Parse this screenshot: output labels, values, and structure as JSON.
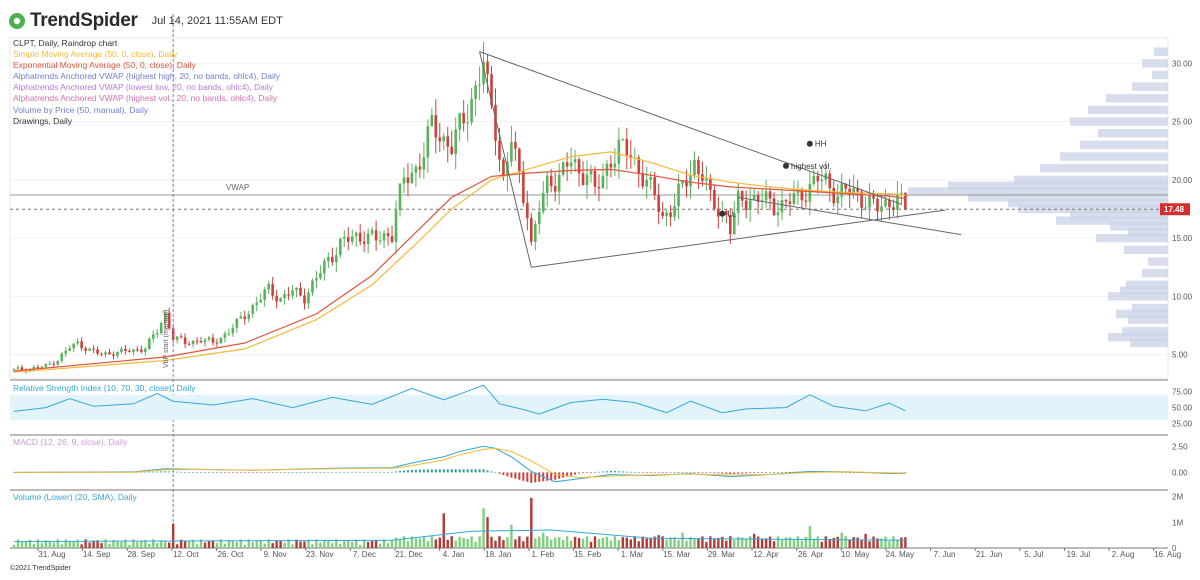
{
  "header": {
    "brand": "TrendSpider",
    "timestamp": "Jul 14, 2021 11:55AM EDT"
  },
  "legend": [
    {
      "text": "CLPT, Daily, Raindrop chart",
      "color": "#333333"
    },
    {
      "text": "Simple Moving Average (50, 0, close), Daily",
      "color": "#f5b935"
    },
    {
      "text": "Exponential Moving Average (50, 0, close), Daily",
      "color": "#e0533d"
    },
    {
      "text": "Alphatrends Anchored VWAP (highest high, 20, no bands, ohlc4), Daily",
      "color": "#6f7fd0"
    },
    {
      "text": "Alphatrends Anchored VWAP (lowest low, 20, no bands, ohlc4), Daily",
      "color": "#b57bd6"
    },
    {
      "text": "Alphatrends Anchored VWAP (highest vol., 20, no bands, ohlc4), Daily",
      "color": "#d66fb0"
    },
    {
      "text": "Volume by Price (50, manual), Daily",
      "color": "#6f7fd0"
    },
    {
      "text": "Drawings, Daily",
      "color": "#333333"
    }
  ],
  "annotations": {
    "vwap": "VWAP",
    "hh": "HH",
    "highest_vol": "highest vol.",
    "ll": "LL",
    "vbp_start": "VbP start (manual)",
    "price_tag": "17.48"
  },
  "panels": {
    "rsi": "Relative Strength Index (10, 70, 30, close), Daily",
    "macd": "MACD (12, 26, 9, close), Daily",
    "volume": "Volume (Lower) (20, SMA), Daily"
  },
  "colors": {
    "up": "#58b35a",
    "down": "#d0403a",
    "sma": "#f5b935",
    "ema": "#e0533d",
    "vbp": "#c9d2e6",
    "price_tag": "#d32f2f",
    "rsi": "#35a7d6"
  },
  "footer": "©2021 TrendSpider",
  "chart_data": {
    "type": "line",
    "price_axis": {
      "ticks": [
        "30.00",
        "25.00",
        "20.00",
        "15.00",
        "10.00",
        "5.00"
      ],
      "range": [
        3,
        32
      ]
    },
    "rsi_axis": {
      "ticks": [
        "75.00",
        "50.00",
        "25.00"
      ],
      "range": [
        15,
        90
      ],
      "band": [
        30,
        70
      ]
    },
    "macd_axis": {
      "ticks": [
        "2.50",
        "0.00"
      ],
      "range": [
        -1.3,
        3.2
      ]
    },
    "volume_axis": {
      "ticks": [
        "2M",
        "1M",
        "0"
      ],
      "range": [
        0,
        2100000
      ]
    },
    "x_ticks": [
      "31. Aug",
      "14. Sep",
      "28. Sep",
      "12. Oct",
      "26. Oct",
      "9. Nov",
      "23. Nov",
      "7. Dec",
      "21. Dec",
      "4. Jan",
      "18. Jan",
      "1. Feb",
      "15. Feb",
      "1. Mar",
      "15. Mar",
      "29. Mar",
      "12. Apr",
      "26. Apr",
      "10. May",
      "24. May",
      "7. Jun",
      "21. Jun",
      "5. Jul",
      "19. Jul",
      "2. Aug",
      "16. Aug"
    ],
    "close_path": [
      [
        0,
        3.7
      ],
      [
        4,
        3.8
      ],
      [
        8,
        4.0
      ],
      [
        11,
        4.6
      ],
      [
        14,
        5.6
      ],
      [
        16,
        6.0
      ],
      [
        19,
        5.4
      ],
      [
        22,
        5.0
      ],
      [
        25,
        5.2
      ],
      [
        29,
        5.3
      ],
      [
        33,
        5.6
      ],
      [
        36,
        7.0
      ],
      [
        38,
        8.5
      ],
      [
        40,
        6.5
      ],
      [
        43,
        6.0
      ],
      [
        47,
        6.3
      ],
      [
        50,
        6.0
      ],
      [
        54,
        7.0
      ],
      [
        58,
        8.4
      ],
      [
        61,
        9.5
      ],
      [
        64,
        10.6
      ],
      [
        67,
        9.8
      ],
      [
        70,
        10.4
      ],
      [
        73,
        10.0
      ],
      [
        76,
        11.5
      ],
      [
        79,
        13.2
      ],
      [
        82,
        14.5
      ],
      [
        85,
        15.0
      ],
      [
        88,
        15.3
      ],
      [
        91,
        14.8
      ],
      [
        95,
        15.5
      ],
      [
        96,
        17.5
      ],
      [
        98,
        19.8
      ],
      [
        101,
        21.0
      ],
      [
        103,
        22.5
      ],
      [
        105,
        24.5
      ],
      [
        108,
        23.5
      ],
      [
        110,
        23.0
      ],
      [
        113,
        25.0
      ],
      [
        115,
        27.0
      ],
      [
        117,
        29.0
      ],
      [
        118,
        30.0
      ],
      [
        119,
        27.5
      ],
      [
        121,
        24.5
      ],
      [
        123,
        20.0
      ],
      [
        125,
        23.5
      ],
      [
        127,
        20.0
      ],
      [
        129,
        17.5
      ],
      [
        130,
        14.5
      ],
      [
        132,
        17.5
      ],
      [
        134,
        19.5
      ],
      [
        137,
        20.5
      ],
      [
        140,
        21.5
      ],
      [
        142,
        20.5
      ],
      [
        144,
        21.0
      ],
      [
        146,
        19.0
      ],
      [
        148,
        20.0
      ],
      [
        150,
        22.0
      ],
      [
        152,
        22.8
      ],
      [
        155,
        22.0
      ],
      [
        158,
        20.5
      ],
      [
        161,
        18.5
      ],
      [
        163,
        16.8
      ],
      [
        166,
        18.0
      ],
      [
        169,
        20.0
      ],
      [
        171,
        21.5
      ],
      [
        173,
        20.5
      ],
      [
        175,
        18.2
      ],
      [
        177,
        17.5
      ],
      [
        179,
        17.0
      ],
      [
        180,
        15.8
      ],
      [
        182,
        18.0
      ],
      [
        185,
        18.5
      ],
      [
        188,
        18.3
      ],
      [
        191,
        17.8
      ],
      [
        194,
        18.0
      ],
      [
        197,
        18.5
      ],
      [
        200,
        19.5
      ],
      [
        202,
        20.0
      ],
      [
        204,
        19.8
      ],
      [
        207,
        18.8
      ],
      [
        209,
        19.0
      ],
      [
        212,
        18.8
      ],
      [
        215,
        18.0
      ],
      [
        217,
        17.5
      ],
      [
        220,
        18.2
      ],
      [
        222,
        18.4
      ],
      [
        224,
        17.48
      ]
    ],
    "sma_path": [
      [
        0,
        3.5
      ],
      [
        38,
        4.5
      ],
      [
        58,
        5.5
      ],
      [
        76,
        8.0
      ],
      [
        90,
        11.0
      ],
      [
        101,
        14.5
      ],
      [
        110,
        17.5
      ],
      [
        120,
        20.0
      ],
      [
        130,
        21.0
      ],
      [
        140,
        22.0
      ],
      [
        150,
        22.4
      ],
      [
        160,
        21.5
      ],
      [
        170,
        20.4
      ],
      [
        180,
        19.8
      ],
      [
        190,
        19.4
      ],
      [
        200,
        19.1
      ],
      [
        210,
        18.9
      ],
      [
        220,
        18.8
      ],
      [
        224,
        18.7
      ]
    ],
    "ema_path": [
      [
        0,
        3.6
      ],
      [
        38,
        4.8
      ],
      [
        58,
        6.0
      ],
      [
        76,
        8.5
      ],
      [
        90,
        11.8
      ],
      [
        101,
        15.5
      ],
      [
        110,
        18.5
      ],
      [
        120,
        20.3
      ],
      [
        130,
        20.6
      ],
      [
        140,
        20.8
      ],
      [
        150,
        20.9
      ],
      [
        160,
        20.4
      ],
      [
        170,
        19.8
      ],
      [
        180,
        19.4
      ],
      [
        190,
        19.2
      ],
      [
        200,
        19.0
      ],
      [
        210,
        18.8
      ],
      [
        220,
        18.6
      ],
      [
        224,
        18.4
      ]
    ],
    "drawings": {
      "triangle_top": [
        [
          117,
          31.0
        ],
        [
          223,
          17.9
        ]
      ],
      "triangle_bottom": [
        [
          130,
          12.5
        ],
        [
          234,
          17.4
        ]
      ],
      "triangle_right_edge": [
        [
          117,
          31.0
        ],
        [
          130,
          12.5
        ]
      ],
      "upper_line": [
        [
          182,
          18.5
        ],
        [
          238,
          15.3
        ]
      ],
      "vwap_level": 18.7,
      "dashed_level": 17.48
    },
    "markers": {
      "hh": [
        200,
        23.1
      ],
      "highest_vol": [
        194,
        21.2
      ],
      "ll": [
        178,
        17.1
      ]
    },
    "vbp": [
      [
        31.0,
        14
      ],
      [
        30.0,
        26
      ],
      [
        29.0,
        16
      ],
      [
        28.0,
        36
      ],
      [
        27.0,
        62
      ],
      [
        26.0,
        80
      ],
      [
        25.0,
        98
      ],
      [
        24.0,
        70
      ],
      [
        23.0,
        88
      ],
      [
        22.0,
        108
      ],
      [
        21.0,
        128
      ],
      [
        20.0,
        154
      ],
      [
        19.5,
        220
      ],
      [
        19.0,
        260
      ],
      [
        18.5,
        200
      ],
      [
        18.0,
        160
      ],
      [
        17.5,
        150
      ],
      [
        17.0,
        98
      ],
      [
        16.5,
        112
      ],
      [
        16.0,
        58
      ],
      [
        15.5,
        40
      ],
      [
        15.0,
        72
      ],
      [
        14.0,
        44
      ],
      [
        13.0,
        20
      ],
      [
        12.0,
        26
      ],
      [
        11.0,
        42
      ],
      [
        10.5,
        48
      ],
      [
        10.0,
        60
      ],
      [
        9.0,
        36
      ],
      [
        8.5,
        52
      ],
      [
        8.0,
        40
      ],
      [
        7.0,
        46
      ],
      [
        6.5,
        60
      ],
      [
        6.0,
        38
      ]
    ],
    "rsi_path": [
      [
        0,
        44
      ],
      [
        8,
        50
      ],
      [
        14,
        64
      ],
      [
        20,
        52
      ],
      [
        30,
        56
      ],
      [
        36,
        72
      ],
      [
        40,
        60
      ],
      [
        50,
        54
      ],
      [
        60,
        64
      ],
      [
        70,
        50
      ],
      [
        80,
        66
      ],
      [
        90,
        55
      ],
      [
        100,
        80
      ],
      [
        108,
        62
      ],
      [
        115,
        78
      ],
      [
        118,
        85
      ],
      [
        122,
        56
      ],
      [
        128,
        47
      ],
      [
        132,
        40
      ],
      [
        140,
        58
      ],
      [
        148,
        63
      ],
      [
        156,
        58
      ],
      [
        164,
        42
      ],
      [
        170,
        60
      ],
      [
        178,
        42
      ],
      [
        184,
        48
      ],
      [
        194,
        50
      ],
      [
        200,
        70
      ],
      [
        206,
        52
      ],
      [
        214,
        45
      ],
      [
        220,
        57
      ],
      [
        224,
        45
      ]
    ],
    "macd_path": [
      [
        0,
        0.0
      ],
      [
        30,
        0.05
      ],
      [
        38,
        0.35
      ],
      [
        45,
        0.3
      ],
      [
        60,
        0.2
      ],
      [
        80,
        0.4
      ],
      [
        95,
        0.45
      ],
      [
        100,
        0.9
      ],
      [
        108,
        1.5
      ],
      [
        112,
        2.0
      ],
      [
        118,
        2.5
      ],
      [
        121,
        2.3
      ],
      [
        125,
        1.5
      ],
      [
        130,
        0.1
      ],
      [
        136,
        -0.9
      ],
      [
        142,
        -0.6
      ],
      [
        150,
        -0.2
      ],
      [
        160,
        -0.3
      ],
      [
        170,
        -0.1
      ],
      [
        180,
        -0.4
      ],
      [
        190,
        -0.2
      ],
      [
        200,
        0.1
      ],
      [
        210,
        0.05
      ],
      [
        220,
        -0.1
      ],
      [
        224,
        -0.1
      ]
    ],
    "signal_path": [
      [
        0,
        0.0
      ],
      [
        30,
        0.02
      ],
      [
        38,
        0.25
      ],
      [
        45,
        0.28
      ],
      [
        60,
        0.22
      ],
      [
        80,
        0.35
      ],
      [
        95,
        0.4
      ],
      [
        100,
        0.65
      ],
      [
        108,
        1.2
      ],
      [
        112,
        1.7
      ],
      [
        118,
        2.2
      ],
      [
        121,
        2.3
      ],
      [
        125,
        2.0
      ],
      [
        130,
        1.1
      ],
      [
        136,
        -0.2
      ],
      [
        142,
        -0.5
      ],
      [
        150,
        -0.35
      ],
      [
        160,
        -0.25
      ],
      [
        170,
        -0.15
      ],
      [
        180,
        -0.25
      ],
      [
        190,
        -0.2
      ],
      [
        200,
        0.0
      ],
      [
        210,
        0.05
      ],
      [
        220,
        -0.05
      ],
      [
        224,
        -0.08
      ]
    ],
    "volume_spikes": [
      [
        40,
        0.95
      ],
      [
        108,
        1.35
      ],
      [
        118,
        1.55
      ],
      [
        119,
        1.2
      ],
      [
        125,
        0.9
      ],
      [
        130,
        1.95
      ],
      [
        133,
        0.6
      ],
      [
        162,
        0.5
      ],
      [
        168,
        0.6
      ],
      [
        186,
        0.55
      ],
      [
        200,
        0.85
      ],
      [
        208,
        0.6
      ],
      [
        214,
        0.55
      ]
    ]
  }
}
